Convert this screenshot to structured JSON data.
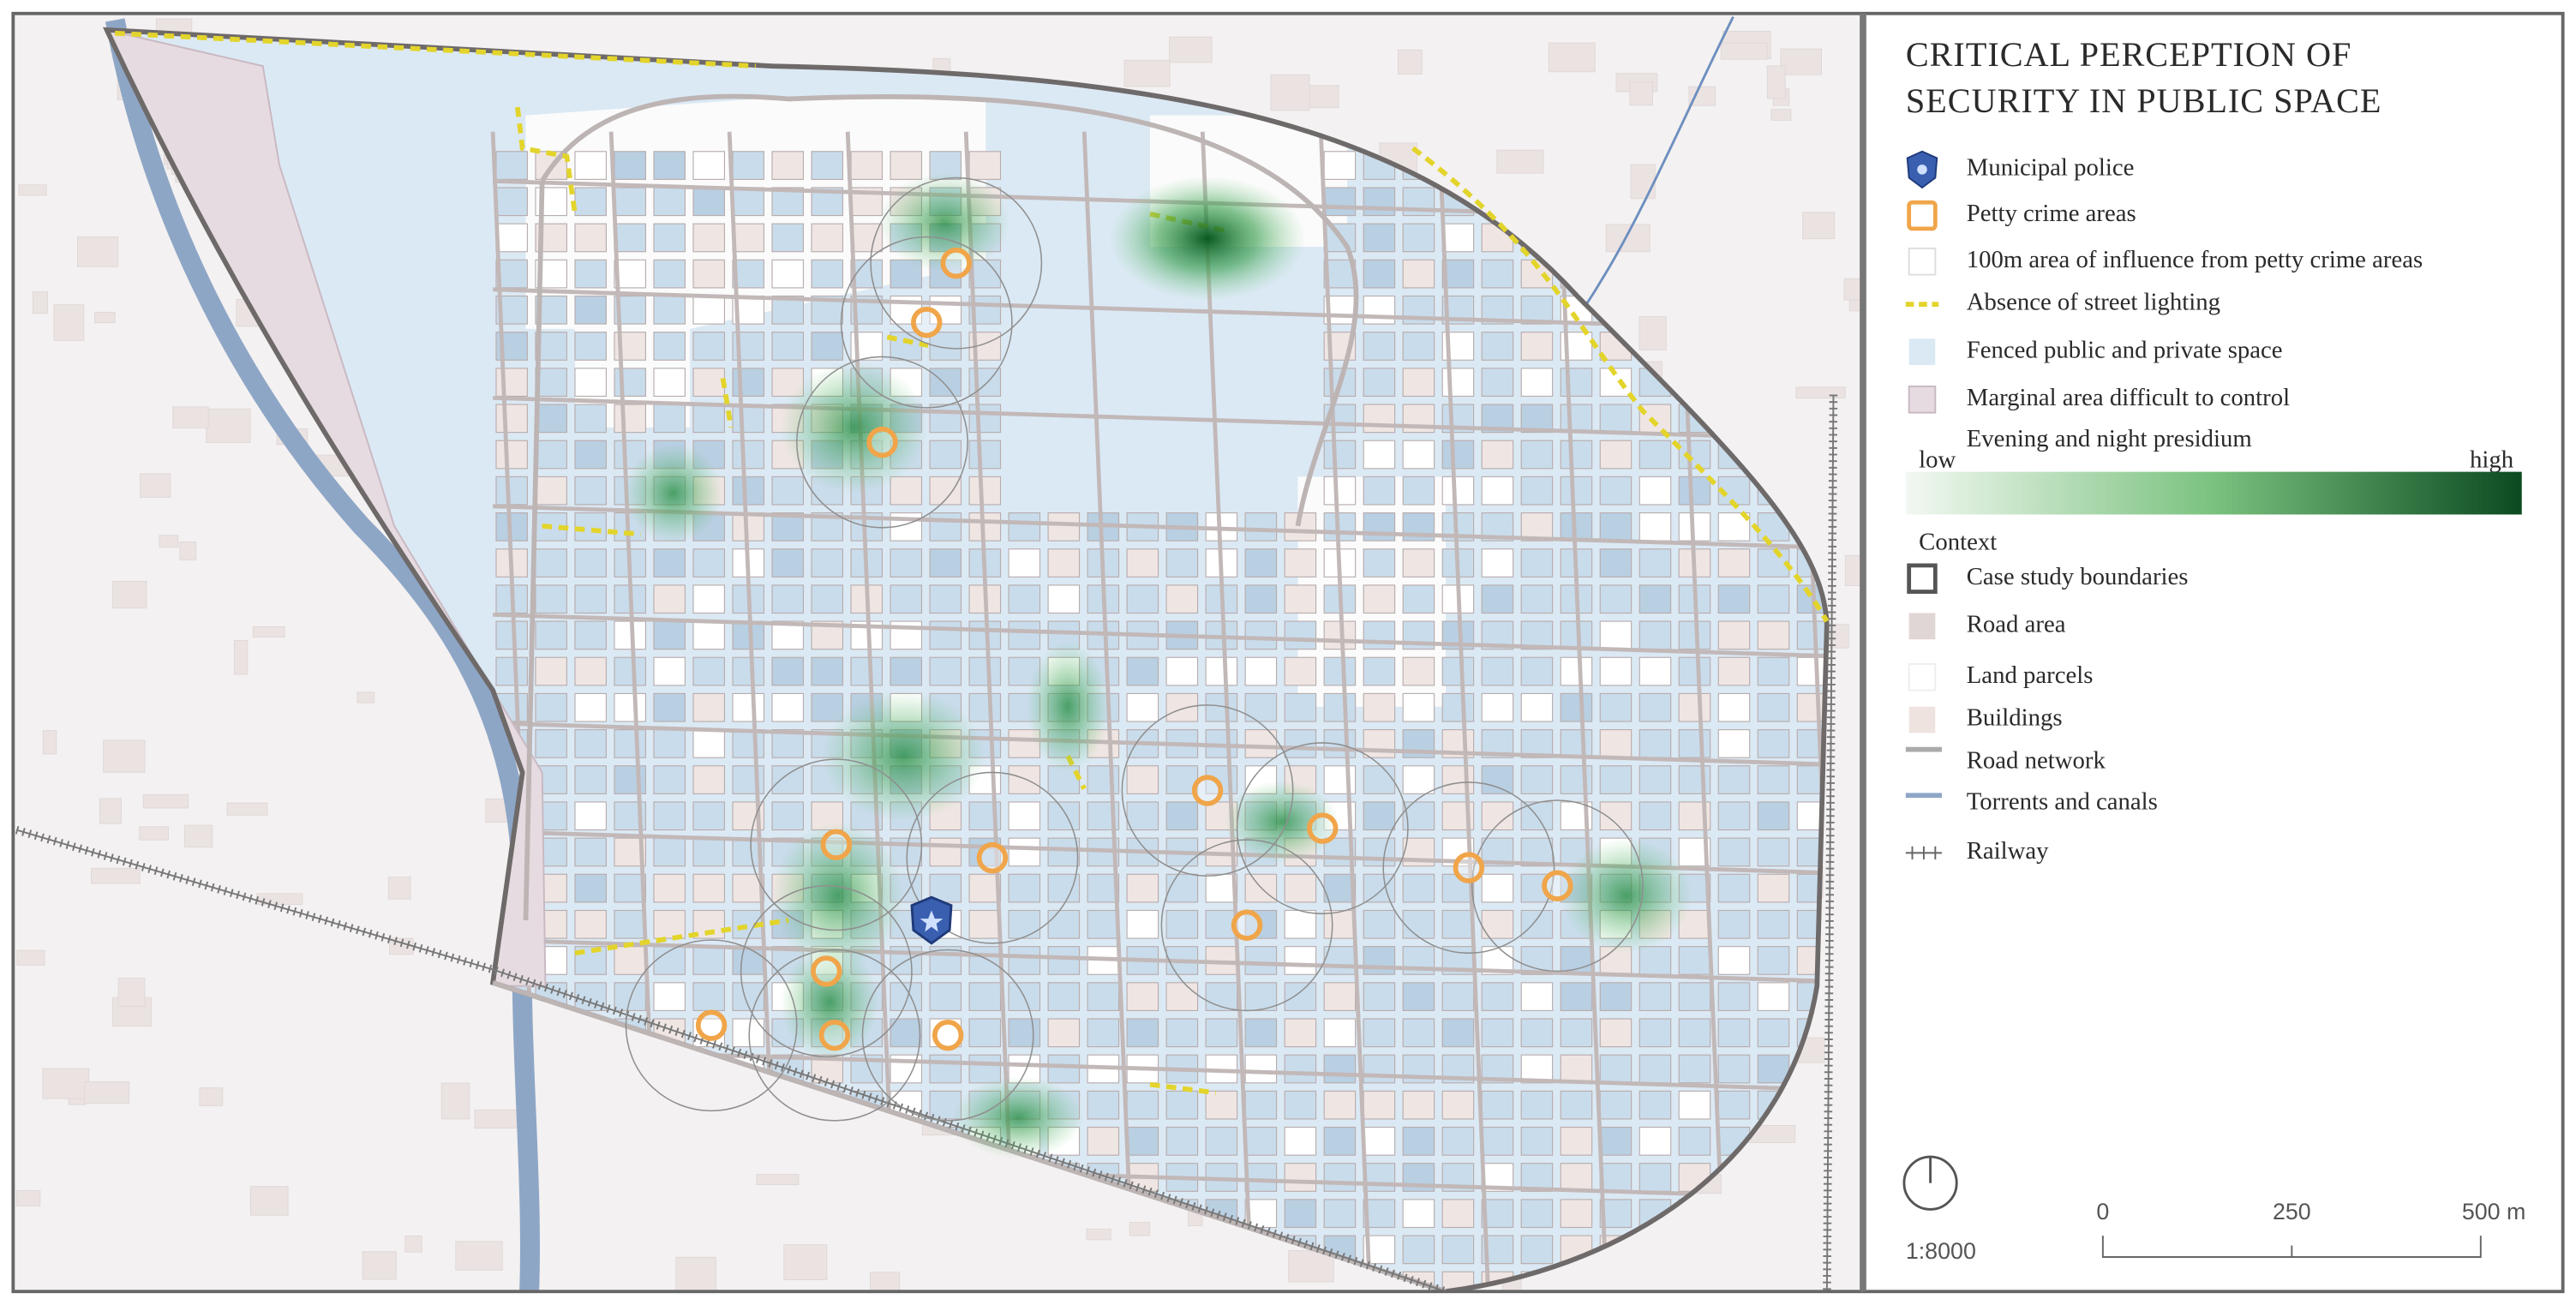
{
  "title": [
    "CRITICAL PERCEPTION OF",
    "SECURITY IN PUBLIC SPACE"
  ],
  "legend": {
    "items": [
      "Municipal police",
      "Petty crime areas",
      "100m area of influence from petty crime areas",
      "Absence of street lighting",
      "Fenced public and private space",
      "Marginal area difficult to control"
    ],
    "gradient": {
      "label": "Evening and night presidium",
      "low": "low",
      "high": "high"
    },
    "context": {
      "heading": "Context",
      "items": [
        "Case study boundaries",
        "Road area",
        "Land parcels",
        "Buildings",
        "Road network",
        "Torrents and canals",
        "Railway"
      ]
    }
  },
  "scale": {
    "ratio": "1:8000",
    "labels": [
      "0",
      "250",
      "500 m"
    ]
  }
}
